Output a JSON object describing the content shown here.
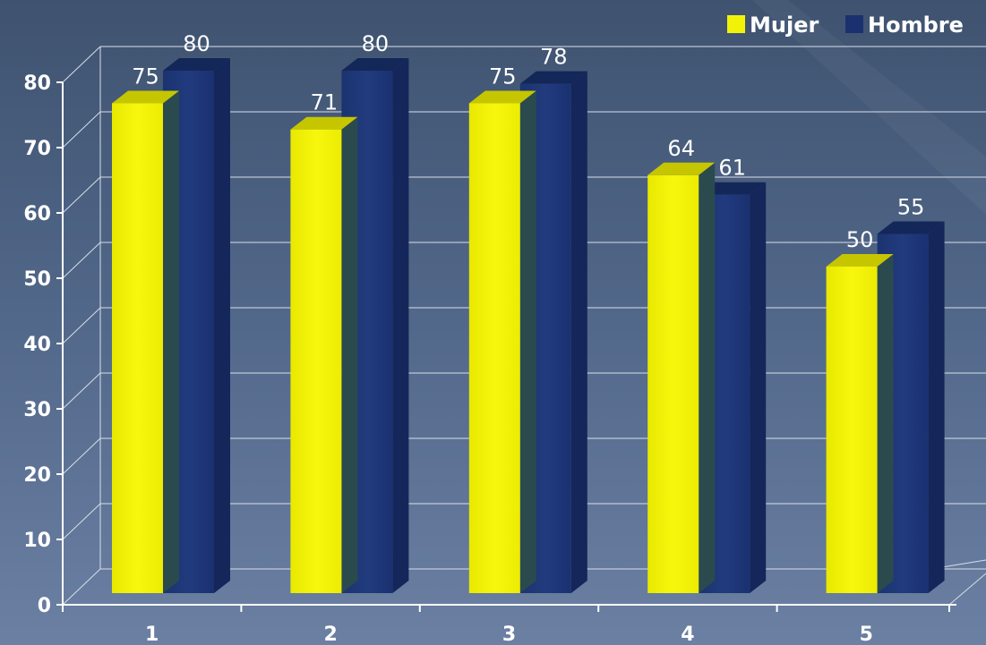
{
  "chart_data": {
    "type": "bar",
    "categories": [
      "1",
      "2",
      "3",
      "4",
      "5"
    ],
    "series": [
      {
        "name": "Mujer",
        "values": [
          75,
          71,
          75,
          64,
          50
        ]
      },
      {
        "name": "Hombre",
        "values": [
          80,
          80,
          78,
          61,
          55
        ]
      }
    ],
    "yticks": [
      "0",
      "10",
      "20",
      "30",
      "40",
      "50",
      "60",
      "70",
      "80"
    ],
    "ylim": [
      0,
      80
    ],
    "grid": true,
    "legend_position": "top-right",
    "colors": {
      "Mujer": "#f2f208",
      "Hombre": "#1a3170"
    }
  }
}
